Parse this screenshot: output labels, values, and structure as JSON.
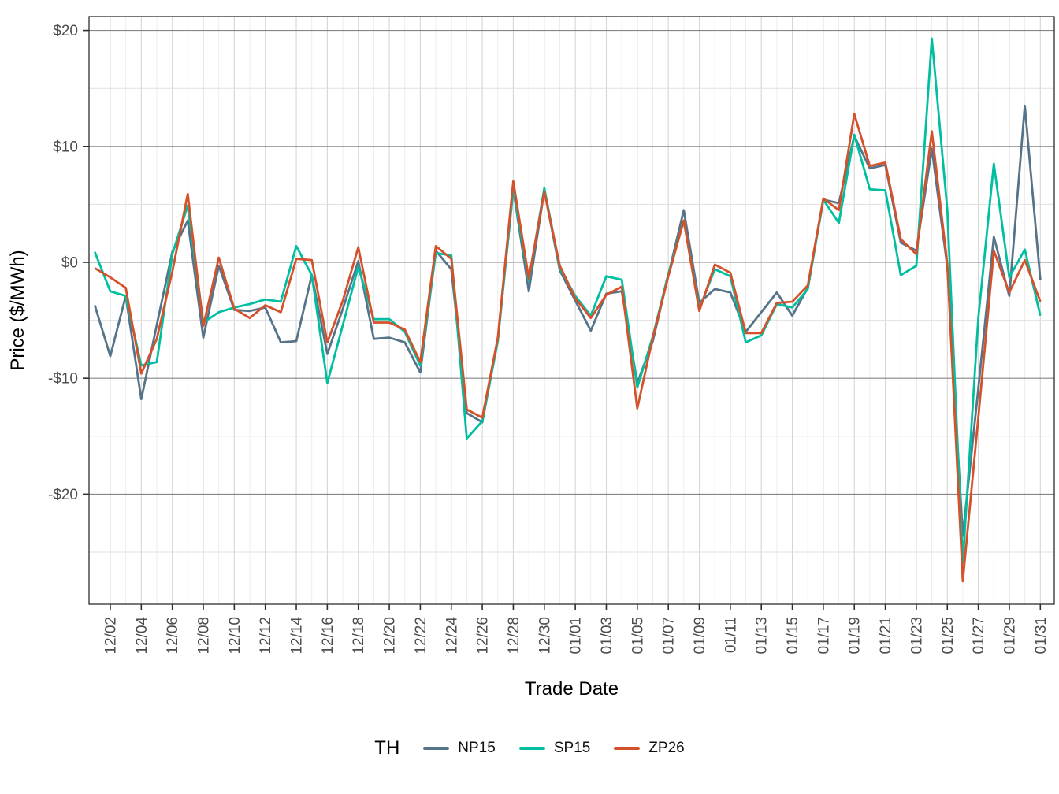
{
  "chart_data": {
    "type": "line",
    "title": "",
    "xlabel": "Trade Date",
    "ylabel": "Price ($/MWh)",
    "legend_title": "TH",
    "legend_position": "bottom",
    "grid": true,
    "ylim": [
      -29.5,
      21.5
    ],
    "yticks": [
      {
        "value": 20,
        "label": "$20"
      },
      {
        "value": 10,
        "label": "$10"
      },
      {
        "value": 0,
        "label": "$0"
      },
      {
        "value": -10,
        "label": "-$10"
      },
      {
        "value": -20,
        "label": "-$20"
      }
    ],
    "yminor": [
      15,
      5,
      -5,
      -15,
      -25
    ],
    "x_dates": [
      "12/01",
      "12/02",
      "12/03",
      "12/04",
      "12/05",
      "12/06",
      "12/07",
      "12/08",
      "12/09",
      "12/10",
      "12/11",
      "12/12",
      "12/13",
      "12/14",
      "12/15",
      "12/16",
      "12/17",
      "12/18",
      "12/19",
      "12/20",
      "12/21",
      "12/22",
      "12/23",
      "12/24",
      "12/25",
      "12/26",
      "12/27",
      "12/28",
      "12/29",
      "12/30",
      "12/31",
      "01/01",
      "01/02",
      "01/03",
      "01/04",
      "01/05",
      "01/06",
      "01/07",
      "01/08",
      "01/09",
      "01/10",
      "01/11",
      "01/12",
      "01/13",
      "01/14",
      "01/15",
      "01/16",
      "01/17",
      "01/18",
      "01/19",
      "01/20",
      "01/21",
      "01/22",
      "01/23",
      "01/24",
      "01/25",
      "01/26",
      "01/27",
      "01/28",
      "01/29",
      "01/30",
      "01/31"
    ],
    "x_tick_labels": [
      "12/02",
      "12/04",
      "12/06",
      "12/08",
      "12/10",
      "12/12",
      "12/14",
      "12/16",
      "12/18",
      "12/20",
      "12/22",
      "12/24",
      "12/26",
      "12/28",
      "12/30",
      "01/01",
      "01/03",
      "01/05",
      "01/07",
      "01/09",
      "01/11",
      "01/13",
      "01/15",
      "01/17",
      "01/19",
      "01/21",
      "01/23",
      "01/25",
      "01/27",
      "01/29",
      "01/31"
    ],
    "series": [
      {
        "name": "NP15",
        "color": "#567489",
        "values": [
          -3.7,
          -8.1,
          -2.9,
          -11.8,
          -5.4,
          0.9,
          3.6,
          -6.5,
          -0.3,
          -4.1,
          -4.2,
          -3.9,
          -6.9,
          -6.8,
          -1.1,
          -7.9,
          -4.0,
          0.1,
          -6.6,
          -6.5,
          -6.9,
          -9.5,
          1.0,
          -0.6,
          -13.0,
          -13.8,
          -6.7,
          6.3,
          -2.5,
          6.2,
          -0.7,
          -3.3,
          -5.9,
          -2.7,
          -2.5,
          -10.4,
          -6.8,
          -1.1,
          4.5,
          -3.5,
          -2.3,
          -2.6,
          -6.0,
          -4.3,
          -2.6,
          -4.6,
          -2.2,
          5.4,
          5.1,
          10.9,
          8.1,
          8.4,
          1.7,
          1.0,
          9.8,
          -0.4,
          -23.6,
          -10.9,
          2.2,
          -2.9,
          13.5,
          -1.5
        ]
      },
      {
        "name": "SP15",
        "color": "#00bfa0",
        "values": [
          0.9,
          -2.5,
          -2.9,
          -8.9,
          -8.6,
          0.7,
          4.9,
          -5.2,
          -4.3,
          -3.9,
          -3.6,
          -3.2,
          -3.4,
          1.4,
          -1.1,
          -10.4,
          -5.4,
          -0.4,
          -4.9,
          -4.9,
          -6.0,
          -8.9,
          0.8,
          0.6,
          -15.2,
          -13.7,
          -6.8,
          6.4,
          -1.6,
          6.4,
          -0.5,
          -2.9,
          -4.6,
          -1.2,
          -1.5,
          -10.8,
          -6.4,
          -1.0,
          3.6,
          -4.0,
          -0.6,
          -1.2,
          -6.9,
          -6.3,
          -3.6,
          -3.9,
          -2.3,
          5.4,
          3.4,
          11.0,
          6.3,
          6.2,
          -1.1,
          -0.3,
          19.3,
          4.5,
          -25.9,
          -4.8,
          8.5,
          -1.3,
          1.1,
          -4.6
        ]
      },
      {
        "name": "ZP26",
        "color": "#d5512b",
        "values": [
          -0.5,
          -1.3,
          -2.2,
          -9.6,
          -6.6,
          -0.8,
          5.9,
          -5.5,
          0.4,
          -4.0,
          -4.8,
          -3.7,
          -4.3,
          0.3,
          0.2,
          -6.9,
          -3.3,
          1.3,
          -5.2,
          -5.2,
          -5.8,
          -8.6,
          1.4,
          0.3,
          -12.7,
          -13.4,
          -6.5,
          7.0,
          -1.4,
          6.1,
          -0.3,
          -3.1,
          -4.8,
          -2.8,
          -2.1,
          -12.6,
          -6.5,
          -1.2,
          3.6,
          -4.2,
          -0.2,
          -0.9,
          -6.1,
          -6.1,
          -3.5,
          -3.4,
          -2.0,
          5.5,
          4.5,
          12.8,
          8.3,
          8.6,
          2.0,
          0.7,
          11.3,
          -0.2,
          -27.5,
          -13.4,
          1.0,
          -2.6,
          0.2,
          -3.4
        ]
      }
    ],
    "style": {
      "panel_border": "#2e2e2e",
      "grid_major_h": "#858585",
      "grid_minor_h": "#e0e0e0",
      "grid_major_v": "#d6d6d6",
      "grid_minor_v": "#ebebeb",
      "tick_label_color": "#4d4d4d",
      "axis_title_color": "#000000"
    }
  }
}
